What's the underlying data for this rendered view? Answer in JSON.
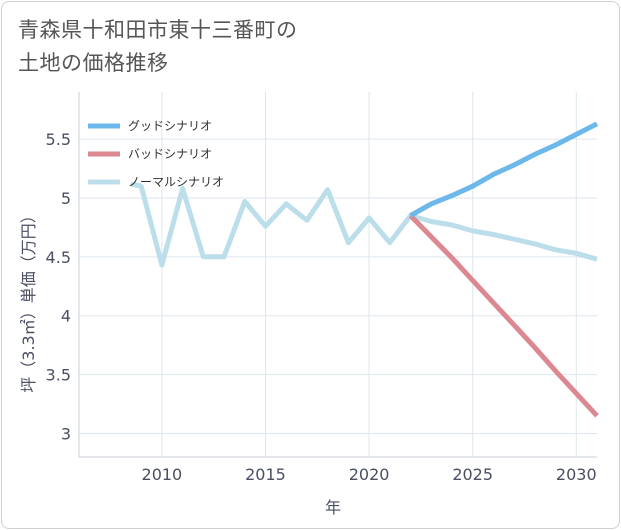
{
  "title_line1": "青森県十和田市東十三番町の",
  "title_line2": "土地の価格推移",
  "colors": {
    "good": "#6cb8ea",
    "bad": "#dc8890",
    "normal": "#bcdeeb",
    "grid": "#dde6ec"
  },
  "chart_data": {
    "type": "line",
    "xlabel": "年",
    "ylabel": "坪（3.3㎡）単価（万円）",
    "xlim": [
      2006,
      2031
    ],
    "ylim": [
      2.8,
      5.9
    ],
    "xticks": [
      2010,
      2015,
      2020,
      2025,
      2030
    ],
    "yticks": [
      3,
      3.5,
      4,
      4.5,
      5,
      5.5
    ],
    "xtick_labels": [
      "2010",
      "2015",
      "2020",
      "2025",
      "2030"
    ],
    "ytick_labels": [
      "3",
      "3.5",
      "4",
      "4.5",
      "5",
      "5.5"
    ],
    "legend_position": "top-left",
    "series": [
      {
        "name": "グッドシナリオ",
        "color_key": "good",
        "x": [
          2022,
          2023,
          2024,
          2025,
          2026,
          2027,
          2028,
          2029,
          2030,
          2031
        ],
        "y": [
          4.85,
          4.95,
          5.02,
          5.1,
          5.2,
          5.28,
          5.37,
          5.45,
          5.54,
          5.63
        ]
      },
      {
        "name": "バッドシナリオ",
        "color_key": "bad",
        "x": [
          2022,
          2023,
          2024,
          2025,
          2026,
          2027,
          2028,
          2029,
          2030,
          2031
        ],
        "y": [
          4.85,
          4.67,
          4.49,
          4.3,
          4.11,
          3.92,
          3.73,
          3.53,
          3.34,
          3.15
        ]
      },
      {
        "name": "ノーマルシナリオ",
        "color_key": "normal",
        "x": [
          2008.5,
          2009,
          2010,
          2011,
          2012,
          2013,
          2014,
          2015,
          2016,
          2017,
          2018,
          2019,
          2020,
          2021,
          2022,
          2023,
          2024,
          2025,
          2026,
          2027,
          2028,
          2029,
          2030,
          2031
        ],
        "y": [
          5.12,
          5.1,
          4.43,
          5.08,
          4.5,
          4.5,
          4.97,
          4.76,
          4.95,
          4.81,
          5.07,
          4.62,
          4.83,
          4.62,
          4.85,
          4.8,
          4.77,
          4.72,
          4.69,
          4.65,
          4.61,
          4.56,
          4.53,
          4.48
        ]
      }
    ]
  }
}
